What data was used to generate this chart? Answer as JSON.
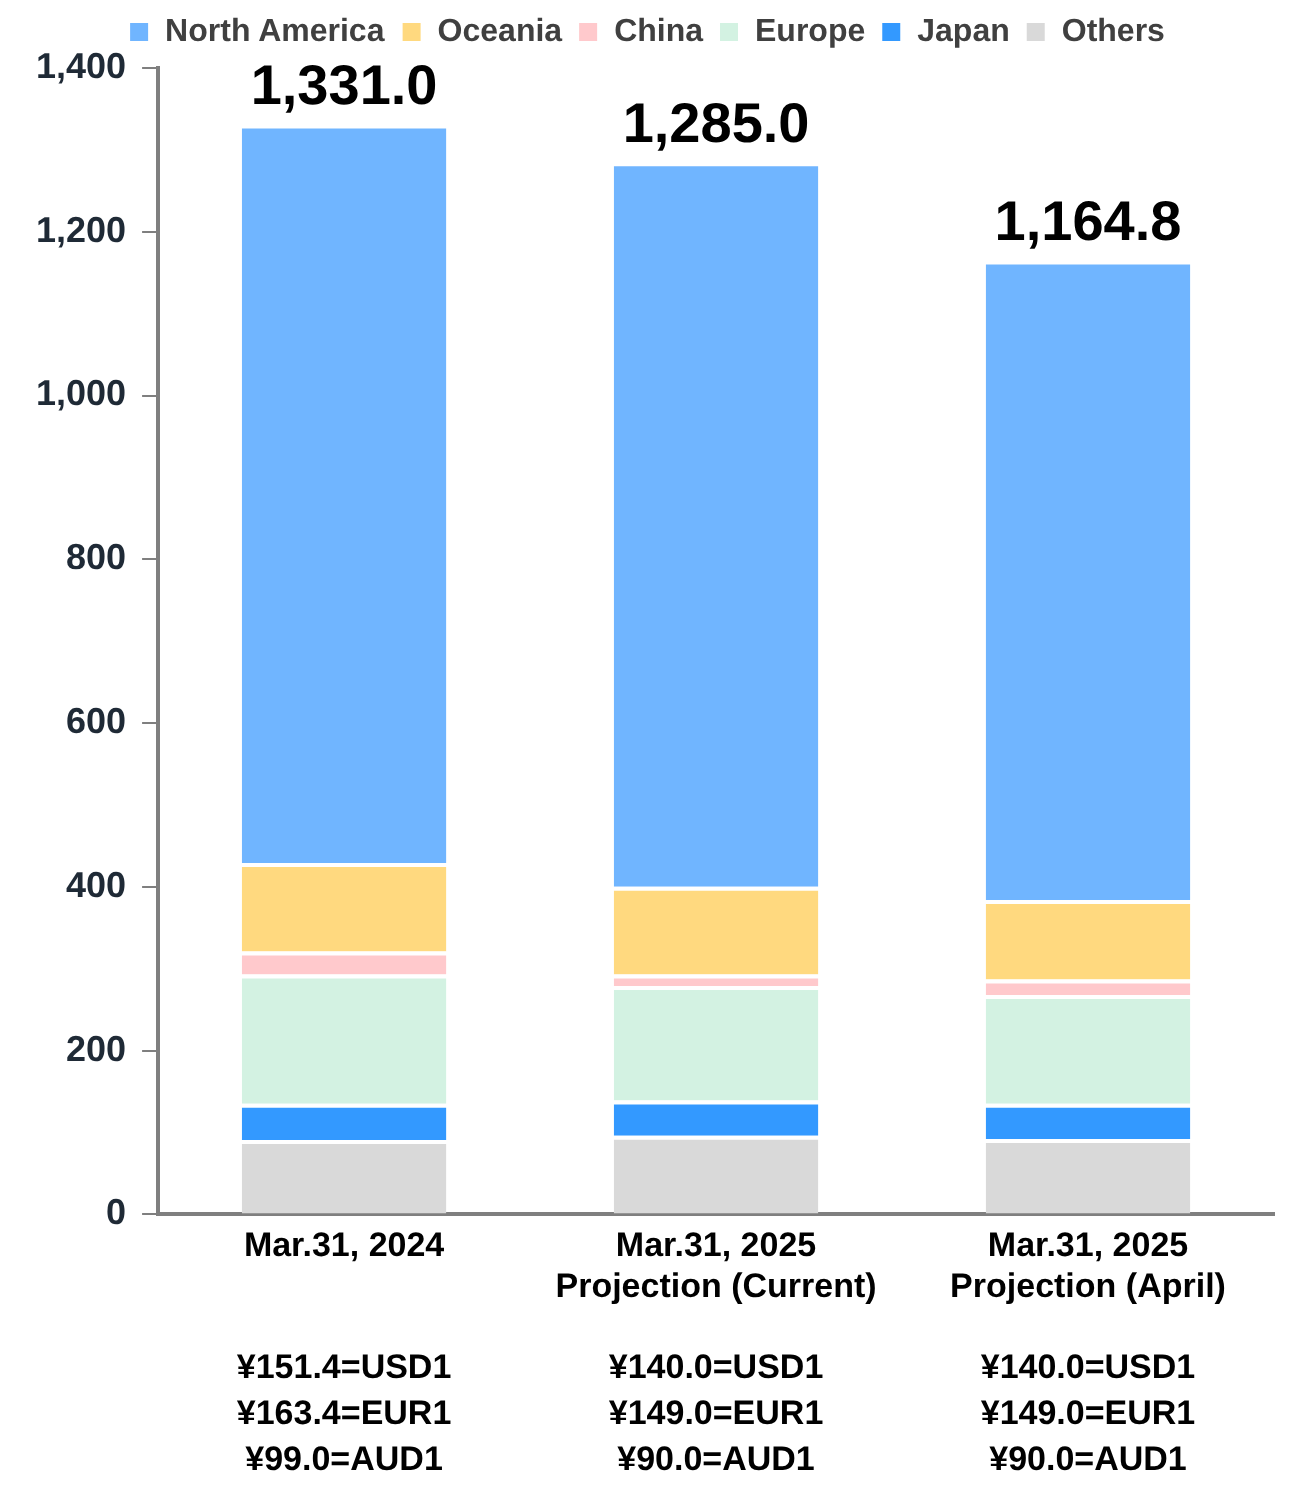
{
  "chart_data": {
    "type": "bar",
    "stacked": true,
    "categories": [
      "Mar.31, 2024",
      "Mar.31, 2025\nProjection (Current)",
      "Mar.31, 2025\nProjection (April)"
    ],
    "series": [
      {
        "name": "Others",
        "color": "#d9d9d9",
        "values": [
          91,
          96,
          92
        ]
      },
      {
        "name": "Japan",
        "color": "#3399ff",
        "values": [
          44,
          43,
          43
        ]
      },
      {
        "name": "Europe",
        "color": "#d3f2e2",
        "values": [
          158,
          140,
          133
        ]
      },
      {
        "name": "China",
        "color": "#ffc9cc",
        "values": [
          28,
          14,
          19
        ]
      },
      {
        "name": "Oceania",
        "color": "#ffd97f",
        "values": [
          108,
          107,
          97
        ]
      },
      {
        "name": "North America",
        "color": "#70b5ff",
        "values": [
          902,
          885,
          780.8
        ]
      }
    ],
    "ylim": [
      0,
      1400
    ],
    "yticks": [
      0,
      200,
      400,
      600,
      800,
      {
        "value": 1000,
        "label": "1,000"
      },
      {
        "value": 1200,
        "label": "1,200"
      },
      {
        "value": 1400,
        "label": "1,400"
      }
    ],
    "totals": [
      "1,331.0",
      "1,285.0",
      "1,164.8"
    ],
    "annotations": [
      "¥151.4=USD1\n¥163.4=EUR1\n¥99.0=AUD1",
      "¥140.0=USD1\n¥149.0=EUR1\n¥90.0=AUD1",
      "¥140.0=USD1\n¥149.0=EUR1\n¥90.0=AUD1"
    ],
    "grid": false,
    "legend": "top"
  }
}
